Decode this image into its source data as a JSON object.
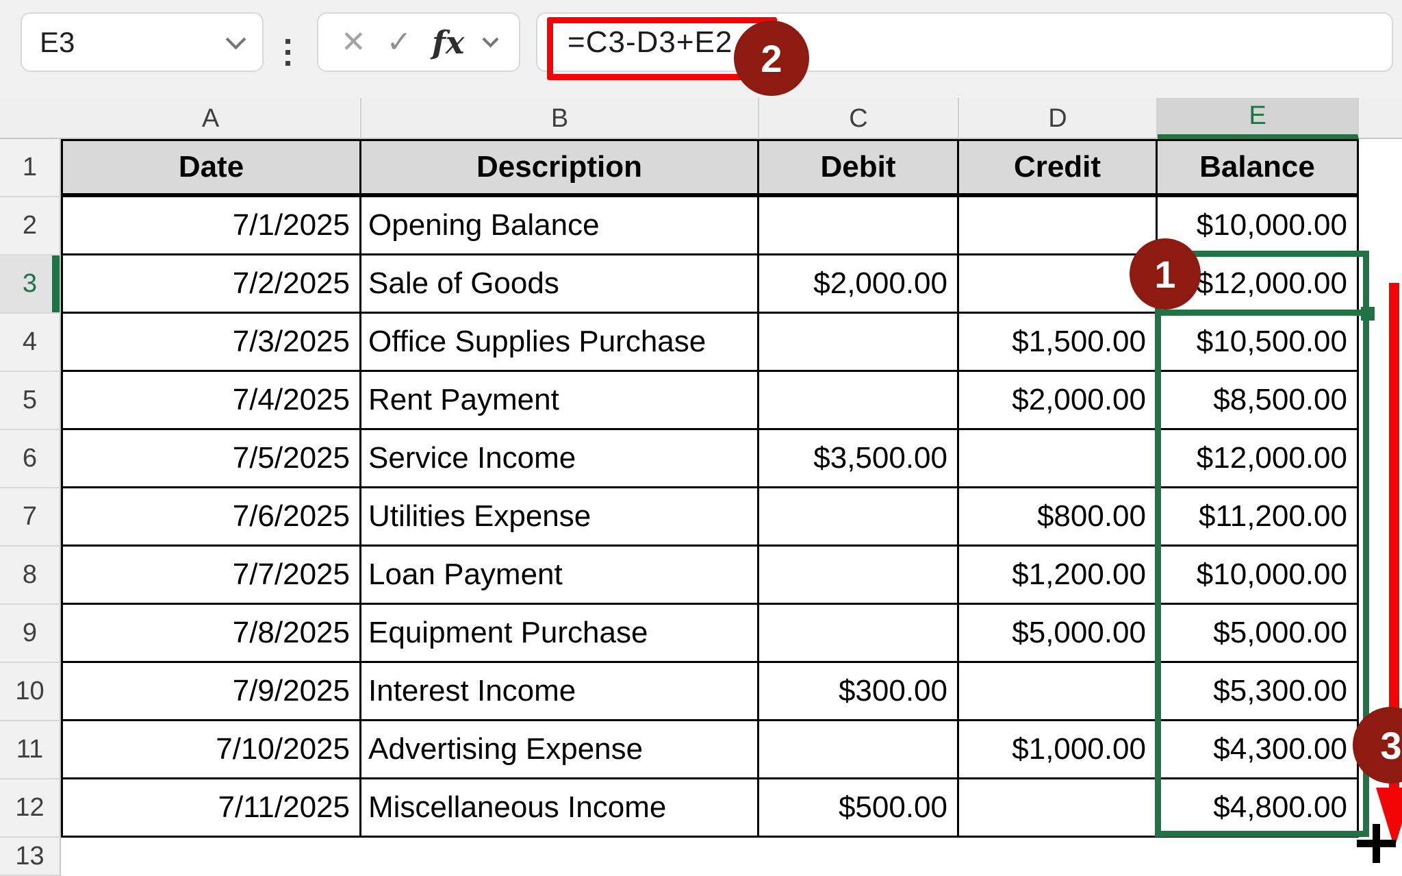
{
  "toolbar": {
    "name_box_value": "E3",
    "formula": "=C3-D3+E2",
    "cancel_glyph": "✕",
    "enter_glyph": "✓",
    "fx_glyph": "fx"
  },
  "icons": {
    "name_box_dropdown": "chevron-down",
    "formula_bar_grip": "vertical-dots",
    "cancel": "x-cancel",
    "enter": "checkmark",
    "insert_function": "fx",
    "formula_dropdown": "chevron-down",
    "select_all": "corner-triangle",
    "fill_handle_cursor": "plus-crosshair",
    "step_arrow": "red-down-arrow"
  },
  "sheet": {
    "column_letters": [
      "A",
      "B",
      "C",
      "D",
      "E"
    ],
    "selected_column": "E",
    "row_numbers": [
      1,
      2,
      3,
      4,
      5,
      6,
      7,
      8,
      9,
      10,
      11,
      12,
      13
    ],
    "selected_row": 3,
    "selected_cell": "E3"
  },
  "table": {
    "headers": [
      "Date",
      "Description",
      "Debit",
      "Credit",
      "Balance"
    ],
    "rows": [
      {
        "row": 2,
        "date": "7/1/2025",
        "description": "Opening Balance",
        "debit": "",
        "credit": "",
        "balance": "$10,000.00"
      },
      {
        "row": 3,
        "date": "7/2/2025",
        "description": "Sale of Goods",
        "debit": "$2,000.00",
        "credit": "",
        "balance": "$12,000.00"
      },
      {
        "row": 4,
        "date": "7/3/2025",
        "description": "Office Supplies Purchase",
        "debit": "",
        "credit": "$1,500.00",
        "balance": "$10,500.00"
      },
      {
        "row": 5,
        "date": "7/4/2025",
        "description": "Rent Payment",
        "debit": "",
        "credit": "$2,000.00",
        "balance": "$8,500.00"
      },
      {
        "row": 6,
        "date": "7/5/2025",
        "description": "Service Income",
        "debit": "$3,500.00",
        "credit": "",
        "balance": "$12,000.00"
      },
      {
        "row": 7,
        "date": "7/6/2025",
        "description": "Utilities Expense",
        "debit": "",
        "credit": "$800.00",
        "balance": "$11,200.00"
      },
      {
        "row": 8,
        "date": "7/7/2025",
        "description": "Loan Payment",
        "debit": "",
        "credit": "$1,200.00",
        "balance": "$10,000.00"
      },
      {
        "row": 9,
        "date": "7/8/2025",
        "description": "Equipment Purchase",
        "debit": "",
        "credit": "$5,000.00",
        "balance": "$5,000.00"
      },
      {
        "row": 10,
        "date": "7/9/2025",
        "description": "Interest Income",
        "debit": "$300.00",
        "credit": "",
        "balance": "$5,300.00"
      },
      {
        "row": 11,
        "date": "7/10/2025",
        "description": "Advertising Expense",
        "debit": "",
        "credit": "$1,000.00",
        "balance": "$4,300.00"
      },
      {
        "row": 12,
        "date": "7/11/2025",
        "description": "Miscellaneous Income",
        "debit": "$500.00",
        "credit": "",
        "balance": "$4,800.00"
      }
    ]
  },
  "annotations": {
    "step1": "1",
    "step2": "2",
    "step3": "3"
  },
  "colors": {
    "selection_green": "#217346",
    "annotation_red": "#8E1B11",
    "highlight_red": "#F40505",
    "header_fill": "#D9D9D9"
  }
}
